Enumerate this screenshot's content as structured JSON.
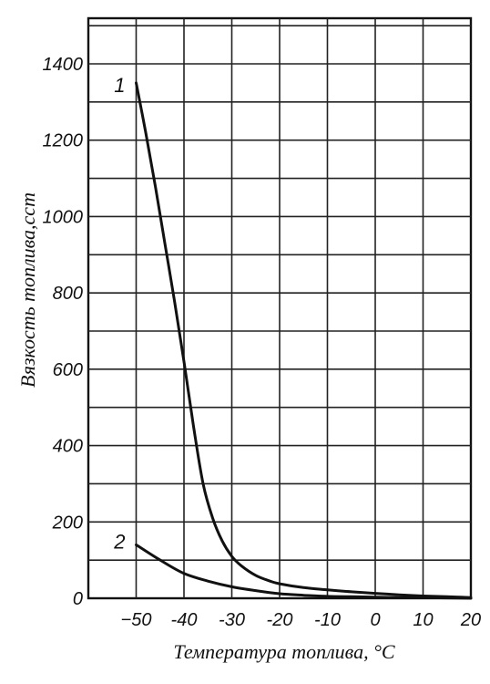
{
  "chart_data": {
    "type": "line",
    "xlabel": "Температура топлива, °С",
    "ylabel": "Вязкость топлива,сст",
    "xlim": [
      -60,
      20
    ],
    "ylim": [
      0,
      1400
    ],
    "x_ticks": [
      -50,
      -40,
      -30,
      -20,
      -10,
      0,
      10,
      20
    ],
    "x_tick_labels": [
      "−50",
      "-40",
      "-30",
      "-20",
      "-10",
      "0",
      "10",
      "20"
    ],
    "y_ticks": [
      0,
      200,
      400,
      600,
      800,
      1000,
      1200,
      1400
    ],
    "y_tick_labels": [
      "0",
      "200",
      "400",
      "600",
      "800",
      "1000",
      "1200",
      "1400"
    ],
    "grid": true,
    "series": [
      {
        "name": "1",
        "x": [
          -50,
          -48,
          -46,
          -44,
          -42,
          -40,
          -38,
          -36,
          -34,
          -32,
          -30,
          -28,
          -25,
          -22,
          -20,
          -15,
          -10,
          -5,
          0,
          5,
          10,
          15,
          20
        ],
        "values": [
          1350,
          1220,
          1080,
          930,
          780,
          620,
          450,
          300,
          210,
          150,
          110,
          85,
          60,
          45,
          38,
          28,
          22,
          17,
          13,
          9,
          6,
          4,
          2
        ]
      },
      {
        "name": "2",
        "x": [
          -50,
          -45,
          -40,
          -35,
          -30,
          -25,
          -20,
          -15,
          -10,
          -5,
          0,
          5,
          10,
          15,
          20
        ],
        "values": [
          140,
          100,
          65,
          45,
          30,
          20,
          12,
          8,
          5,
          4,
          3,
          2,
          2,
          1,
          0
        ]
      }
    ]
  }
}
